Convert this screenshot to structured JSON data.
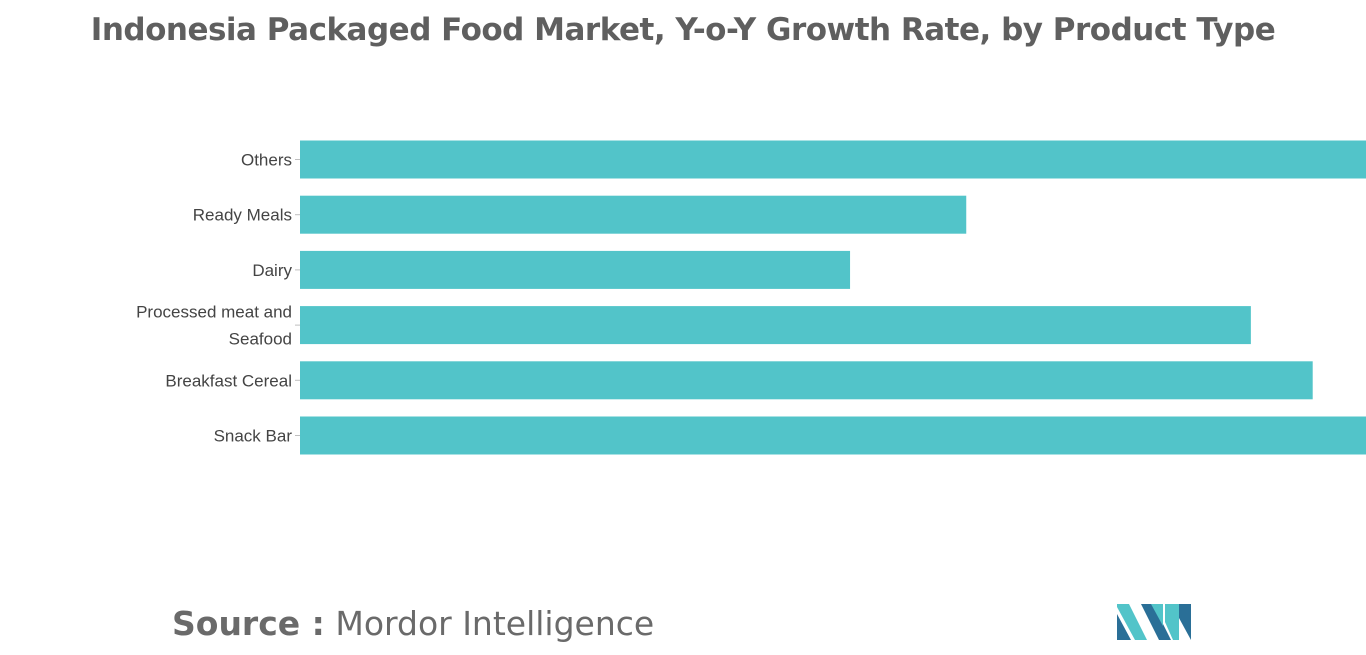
{
  "title": "Indonesia Packaged Food Market, Y-o-Y Growth Rate, by Product Type",
  "source": {
    "label": "Source :",
    "name": "Mordor Intelligence"
  },
  "chart_data": {
    "type": "bar",
    "orientation": "horizontal",
    "title": "Indonesia Packaged Food Market, Y-o-Y Growth Rate, by Product Type",
    "xlabel": "",
    "ylabel": "",
    "categories": [
      "Others",
      "Ready Meals",
      "Dairy",
      "Processed meat and Seafood",
      "Breakfast Cereal",
      "Snack Bar"
    ],
    "category_lines": [
      [
        "Others"
      ],
      [
        "Ready Meals"
      ],
      [
        "Dairy"
      ],
      [
        "Processed meat and",
        "Seafood"
      ],
      [
        "Breakfast Cereal"
      ],
      [
        "Snack Bar"
      ]
    ],
    "values": [
      1.0,
      0.625,
      0.516,
      0.892,
      0.95,
      1.0
    ],
    "value_note": "no axis values printed; values are relative bar lengths",
    "xlim": [
      0,
      1.0
    ],
    "grid": false,
    "bar_color": "#52c4c9",
    "legend": "none"
  },
  "colors": {
    "bar": "#52c4c9",
    "title": "#5f5f5f",
    "label": "#444444",
    "logo_dark": "#2a6f97",
    "logo_light": "#52c4c9"
  }
}
